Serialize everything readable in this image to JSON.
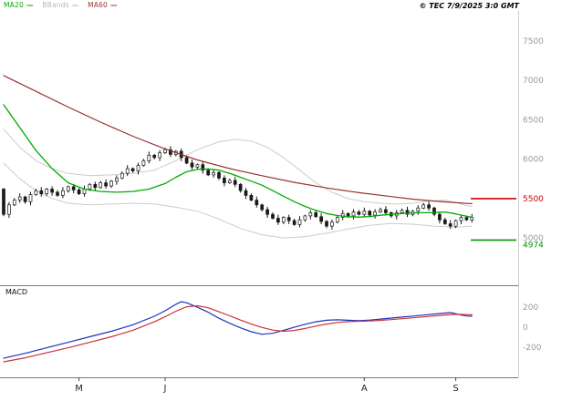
{
  "header": {
    "legend": [
      {
        "label": "MA20",
        "color": "#00aa00"
      },
      {
        "label": "BBands",
        "color": "#b8b8b8"
      },
      {
        "label": "MA60",
        "color": "#993333"
      }
    ],
    "dash": "—",
    "copyright": "© TEC 7/9/2025 3:0 GMT"
  },
  "chart_data": [
    {
      "type": "candlestick",
      "panel": "price",
      "ylim": [
        4400,
        7880
      ],
      "yticks": [
        7500,
        7000,
        6500,
        6000,
        5000
      ],
      "xticks": [
        {
          "label": "M",
          "i": 14
        },
        {
          "label": "J",
          "i": 30
        },
        {
          "label": "A",
          "i": 67
        },
        {
          "label": "S",
          "i": 84
        }
      ],
      "first_open": 5620,
      "closes": [
        5300,
        5420,
        5480,
        5520,
        5460,
        5550,
        5600,
        5560,
        5620,
        5580,
        5540,
        5600,
        5650,
        5610,
        5560,
        5620,
        5680,
        5640,
        5700,
        5660,
        5720,
        5760,
        5820,
        5880,
        5850,
        5920,
        5980,
        6050,
        6020,
        6080,
        6120,
        6060,
        6100,
        6020,
        5950,
        5900,
        5930,
        5860,
        5800,
        5830,
        5760,
        5700,
        5730,
        5680,
        5600,
        5540,
        5480,
        5420,
        5360,
        5300,
        5250,
        5200,
        5260,
        5220,
        5170,
        5230,
        5280,
        5320,
        5270,
        5210,
        5150,
        5200,
        5260,
        5310,
        5280,
        5330,
        5300,
        5340,
        5290,
        5330,
        5360,
        5320,
        5280,
        5320,
        5350,
        5300,
        5340,
        5380,
        5420,
        5380,
        5300,
        5230,
        5180,
        5150,
        5220,
        5260,
        5230,
        5260
      ],
      "wick_pattern": [
        15,
        35,
        25,
        45
      ],
      "levels": [
        {
          "label": "5500",
          "value": 5500,
          "color": "#cc0000",
          "dy": 3
        },
        {
          "label": "4974",
          "value": 4974,
          "color": "#009900",
          "dy": 8
        }
      ],
      "overlays": [
        {
          "name": "BB_upper",
          "color": "#cccccc",
          "width": 1,
          "behind": true,
          "points": [
            [
              0,
              6380
            ],
            [
              3,
              6150
            ],
            [
              6,
              5980
            ],
            [
              9,
              5880
            ],
            [
              12,
              5820
            ],
            [
              16,
              5790
            ],
            [
              20,
              5800
            ],
            [
              24,
              5820
            ],
            [
              28,
              5860
            ],
            [
              32,
              5980
            ],
            [
              36,
              6120
            ],
            [
              40,
              6220
            ],
            [
              43,
              6250
            ],
            [
              46,
              6230
            ],
            [
              49,
              6150
            ],
            [
              52,
              6020
            ],
            [
              55,
              5860
            ],
            [
              58,
              5700
            ],
            [
              61,
              5580
            ],
            [
              64,
              5500
            ],
            [
              67,
              5460
            ],
            [
              70,
              5440
            ],
            [
              73,
              5430
            ],
            [
              76,
              5440
            ],
            [
              79,
              5470
            ],
            [
              82,
              5480
            ],
            [
              84,
              5450
            ],
            [
              86,
              5410
            ],
            [
              87,
              5400
            ]
          ]
        },
        {
          "name": "BB_lower",
          "color": "#cccccc",
          "width": 1,
          "behind": true,
          "points": [
            [
              0,
              5950
            ],
            [
              3,
              5750
            ],
            [
              6,
              5600
            ],
            [
              9,
              5500
            ],
            [
              12,
              5440
            ],
            [
              16,
              5420
            ],
            [
              20,
              5430
            ],
            [
              24,
              5440
            ],
            [
              28,
              5430
            ],
            [
              32,
              5390
            ],
            [
              36,
              5340
            ],
            [
              40,
              5240
            ],
            [
              44,
              5120
            ],
            [
              48,
              5040
            ],
            [
              52,
              5000
            ],
            [
              56,
              5015
            ],
            [
              60,
              5060
            ],
            [
              64,
              5115
            ],
            [
              68,
              5160
            ],
            [
              72,
              5185
            ],
            [
              76,
              5175
            ],
            [
              80,
              5150
            ],
            [
              84,
              5135
            ],
            [
              87,
              5150
            ]
          ]
        },
        {
          "name": "MA60",
          "color": "#993333",
          "width": 1.2,
          "behind": false,
          "points": [
            [
              0,
              7060
            ],
            [
              6,
              6860
            ],
            [
              12,
              6660
            ],
            [
              18,
              6470
            ],
            [
              24,
              6290
            ],
            [
              30,
              6130
            ],
            [
              36,
              5990
            ],
            [
              42,
              5880
            ],
            [
              48,
              5790
            ],
            [
              54,
              5705
            ],
            [
              60,
              5635
            ],
            [
              66,
              5575
            ],
            [
              72,
              5525
            ],
            [
              76,
              5492
            ],
            [
              80,
              5468
            ],
            [
              84,
              5448
            ],
            [
              87,
              5435
            ]
          ]
        },
        {
          "name": "MA20",
          "color": "#00aa00",
          "width": 1.3,
          "behind": false,
          "points": [
            [
              0,
              6690
            ],
            [
              3,
              6400
            ],
            [
              6,
              6110
            ],
            [
              9,
              5880
            ],
            [
              12,
              5700
            ],
            [
              15,
              5620
            ],
            [
              18,
              5590
            ],
            [
              21,
              5580
            ],
            [
              24,
              5590
            ],
            [
              27,
              5620
            ],
            [
              30,
              5690
            ],
            [
              32,
              5770
            ],
            [
              34,
              5840
            ],
            [
              36,
              5870
            ],
            [
              38,
              5875
            ],
            [
              40,
              5860
            ],
            [
              42,
              5820
            ],
            [
              44,
              5770
            ],
            [
              46,
              5720
            ],
            [
              48,
              5670
            ],
            [
              50,
              5600
            ],
            [
              52,
              5530
            ],
            [
              54,
              5460
            ],
            [
              56,
              5400
            ],
            [
              58,
              5350
            ],
            [
              60,
              5310
            ],
            [
              62,
              5285
            ],
            [
              64,
              5270
            ],
            [
              66,
              5265
            ],
            [
              68,
              5272
            ],
            [
              70,
              5288
            ],
            [
              72,
              5300
            ],
            [
              74,
              5310
            ],
            [
              76,
              5318
            ],
            [
              78,
              5320
            ],
            [
              80,
              5322
            ],
            [
              82,
              5330
            ],
            [
              84,
              5305
            ],
            [
              86,
              5275
            ],
            [
              87,
              5262
            ]
          ]
        }
      ]
    },
    {
      "type": "line",
      "panel": "macd",
      "title": "MACD",
      "ylim": [
        -500,
        420
      ],
      "yticks": [
        200,
        0,
        -200
      ],
      "series": [
        {
          "name": "MACD",
          "color": "#2233bb",
          "width": 1.2,
          "points": [
            [
              0,
              -310
            ],
            [
              4,
              -260
            ],
            [
              8,
              -205
            ],
            [
              12,
              -150
            ],
            [
              16,
              -95
            ],
            [
              20,
              -40
            ],
            [
              24,
              25
            ],
            [
              28,
              110
            ],
            [
              30,
              165
            ],
            [
              32,
              230
            ],
            [
              33,
              255
            ],
            [
              34,
              245
            ],
            [
              36,
              200
            ],
            [
              38,
              150
            ],
            [
              40,
              90
            ],
            [
              42,
              40
            ],
            [
              44,
              -5
            ],
            [
              46,
              -45
            ],
            [
              48,
              -70
            ],
            [
              50,
              -60
            ],
            [
              52,
              -30
            ],
            [
              54,
              0
            ],
            [
              56,
              30
            ],
            [
              58,
              55
            ],
            [
              60,
              70
            ],
            [
              62,
              75
            ],
            [
              64,
              70
            ],
            [
              66,
              66
            ],
            [
              68,
              72
            ],
            [
              70,
              82
            ],
            [
              72,
              92
            ],
            [
              74,
              102
            ],
            [
              76,
              112
            ],
            [
              78,
              122
            ],
            [
              80,
              132
            ],
            [
              82,
              142
            ],
            [
              83,
              147
            ],
            [
              84,
              136
            ],
            [
              85,
              122
            ],
            [
              86,
              113
            ],
            [
              87,
              110
            ]
          ]
        },
        {
          "name": "Signal",
          "color": "#cc3333",
          "width": 1.2,
          "points": [
            [
              0,
              -345
            ],
            [
              4,
              -305
            ],
            [
              8,
              -255
            ],
            [
              12,
              -205
            ],
            [
              16,
              -150
            ],
            [
              20,
              -95
            ],
            [
              24,
              -30
            ],
            [
              28,
              55
            ],
            [
              30,
              105
            ],
            [
              32,
              160
            ],
            [
              34,
              205
            ],
            [
              36,
              215
            ],
            [
              38,
              195
            ],
            [
              40,
              155
            ],
            [
              42,
              115
            ],
            [
              44,
              72
            ],
            [
              46,
              32
            ],
            [
              48,
              -2
            ],
            [
              50,
              -28
            ],
            [
              52,
              -40
            ],
            [
              54,
              -32
            ],
            [
              56,
              -12
            ],
            [
              58,
              12
            ],
            [
              60,
              32
            ],
            [
              62,
              48
            ],
            [
              64,
              57
            ],
            [
              66,
              60
            ],
            [
              68,
              63
            ],
            [
              70,
              69
            ],
            [
              72,
              77
            ],
            [
              74,
              86
            ],
            [
              76,
              95
            ],
            [
              78,
              104
            ],
            [
              80,
              113
            ],
            [
              82,
              123
            ],
            [
              84,
              129
            ],
            [
              86,
              127
            ],
            [
              87,
              125
            ]
          ]
        }
      ]
    }
  ]
}
